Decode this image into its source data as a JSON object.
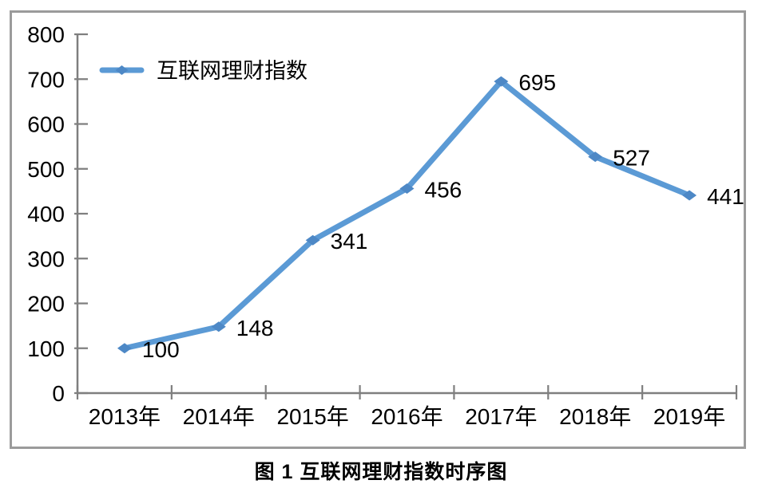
{
  "chart_data": {
    "type": "line",
    "title": "",
    "caption": "图 1 互联网理财指数时序图",
    "categories": [
      "2013年",
      "2014年",
      "2015年",
      "2016年",
      "2017年",
      "2018年",
      "2019年"
    ],
    "series": [
      {
        "name": "互联网理财指数",
        "values": [
          100,
          148,
          341,
          456,
          695,
          527,
          441
        ]
      }
    ],
    "data_labels": [
      100,
      148,
      341,
      456,
      695,
      527,
      441
    ],
    "ylim": [
      0,
      800
    ],
    "ytick_step": 100,
    "yticks": [
      0,
      100,
      200,
      300,
      400,
      500,
      600,
      700,
      800
    ],
    "grid": false,
    "legend_position": "top-left",
    "marker": "diamond",
    "colors": {
      "line": "#5B9AD5",
      "marker": "#4D88C6",
      "axis": "#7F7F7F",
      "frame": "#9B9B9B",
      "text": "#000000"
    }
  }
}
